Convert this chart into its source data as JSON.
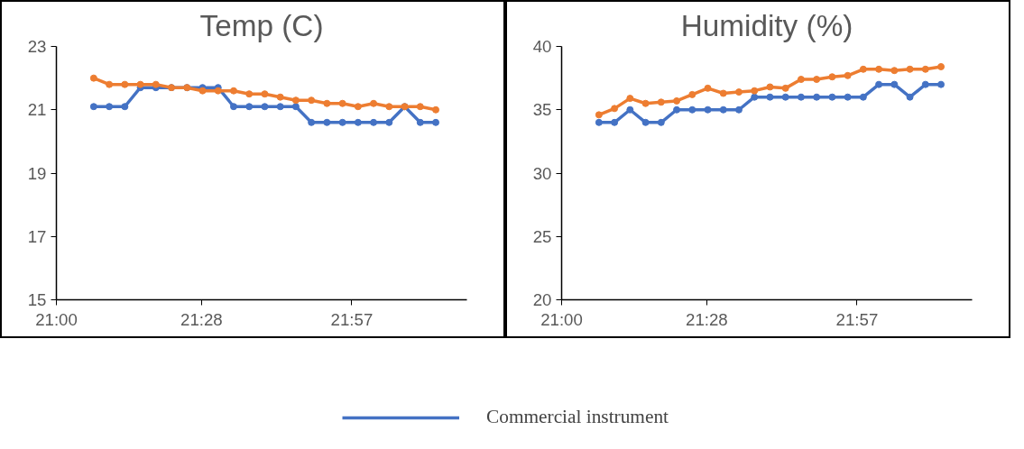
{
  "chart_data": [
    {
      "type": "line",
      "title": "Temp (C)",
      "marker": "circle",
      "grid": false,
      "legend": "bottom",
      "x": [
        21.12,
        21.17,
        21.22,
        21.27,
        21.32,
        21.37,
        21.42,
        21.47,
        21.52,
        21.57,
        21.62,
        21.67,
        21.72,
        21.77,
        21.82,
        21.87,
        21.92,
        21.97,
        22.02,
        22.07,
        22.12,
        22.17,
        22.22
      ],
      "xlim": [
        21.0,
        22.32
      ],
      "xticks": [
        {
          "value": 21.0,
          "label": "21:00"
        },
        {
          "value": 21.4667,
          "label": "21:28"
        },
        {
          "value": 21.95,
          "label": "21:57"
        }
      ],
      "ylim": [
        15,
        23
      ],
      "yticks": [
        15,
        17,
        19,
        21,
        23
      ],
      "series": [
        {
          "name": "Commercial instrument",
          "color": "#4472c4",
          "values": [
            21.1,
            21.1,
            21.1,
            21.7,
            21.7,
            21.7,
            21.7,
            21.7,
            21.7,
            21.1,
            21.1,
            21.1,
            21.1,
            21.1,
            20.6,
            20.6,
            20.6,
            20.6,
            20.6,
            20.6,
            21.1,
            20.6,
            20.6
          ]
        },
        {
          "color": "#ed7d31",
          "values": [
            22.0,
            21.8,
            21.8,
            21.8,
            21.8,
            21.7,
            21.7,
            21.6,
            21.6,
            21.6,
            21.5,
            21.5,
            21.4,
            21.3,
            21.3,
            21.2,
            21.2,
            21.1,
            21.2,
            21.1,
            21.1,
            21.1,
            21.0
          ]
        }
      ]
    },
    {
      "type": "line",
      "title": "Humidity (%)",
      "marker": "circle",
      "grid": false,
      "x": [
        21.12,
        21.17,
        21.22,
        21.27,
        21.32,
        21.37,
        21.42,
        21.47,
        21.52,
        21.57,
        21.62,
        21.67,
        21.72,
        21.77,
        21.82,
        21.87,
        21.92,
        21.97,
        22.02,
        22.07,
        22.12,
        22.17,
        22.22
      ],
      "xlim": [
        21.0,
        22.32
      ],
      "xticks": [
        {
          "value": 21.0,
          "label": "21:00"
        },
        {
          "value": 21.4667,
          "label": "21:28"
        },
        {
          "value": 21.95,
          "label": "21:57"
        }
      ],
      "ylim": [
        20,
        40
      ],
      "yticks": [
        20,
        25,
        30,
        35,
        40
      ],
      "series": [
        {
          "color": "#4472c4",
          "values": [
            34,
            34,
            35,
            34,
            34,
            35,
            35,
            35,
            35,
            35,
            36,
            36,
            36,
            36,
            36,
            36,
            36,
            36,
            37,
            37,
            36,
            37,
            37
          ]
        },
        {
          "color": "#ed7d31",
          "values": [
            34.6,
            35.1,
            35.9,
            35.5,
            35.6,
            35.7,
            36.2,
            36.7,
            36.3,
            36.4,
            36.5,
            36.8,
            36.7,
            37.4,
            37.4,
            37.6,
            37.7,
            38.2,
            38.2,
            38.1,
            38.2,
            38.2,
            38.4
          ]
        }
      ]
    }
  ]
}
